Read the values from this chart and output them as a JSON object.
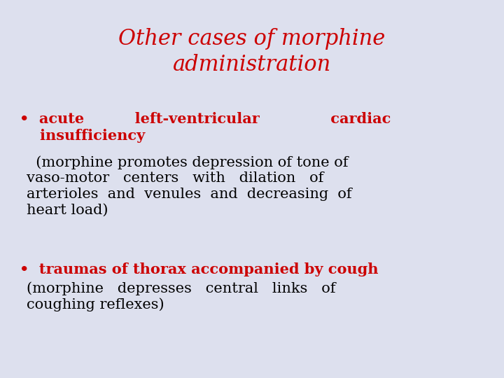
{
  "title_line1": "Other cases of morphine",
  "title_line2": "administration",
  "title_color": "#cc0000",
  "title_fontsize": 22,
  "background_color": "#dde0ee",
  "bullet_color": "#cc0000",
  "body_color": "#000000",
  "bullet1_header_line1": "•  acute          left-ventricular              cardiac",
  "bullet1_header_line2": "    insufficiency",
  "bullet1_body_line1": "  (morphine promotes depression of tone of",
  "bullet1_body_line2": "vaso-motor   centers   with   dilation   of",
  "bullet1_body_line3": "arterioles  and  venules  and  decreasing  of",
  "bullet1_body_line4": "heart load)",
  "bullet2_header": "•  traumas of thorax accompanied by cough",
  "bullet2_body_line1": "(morphine   depresses   central   links   of",
  "bullet2_body_line2": "coughing reflexes)",
  "text_fontsize": 15,
  "body_fontsize": 15
}
